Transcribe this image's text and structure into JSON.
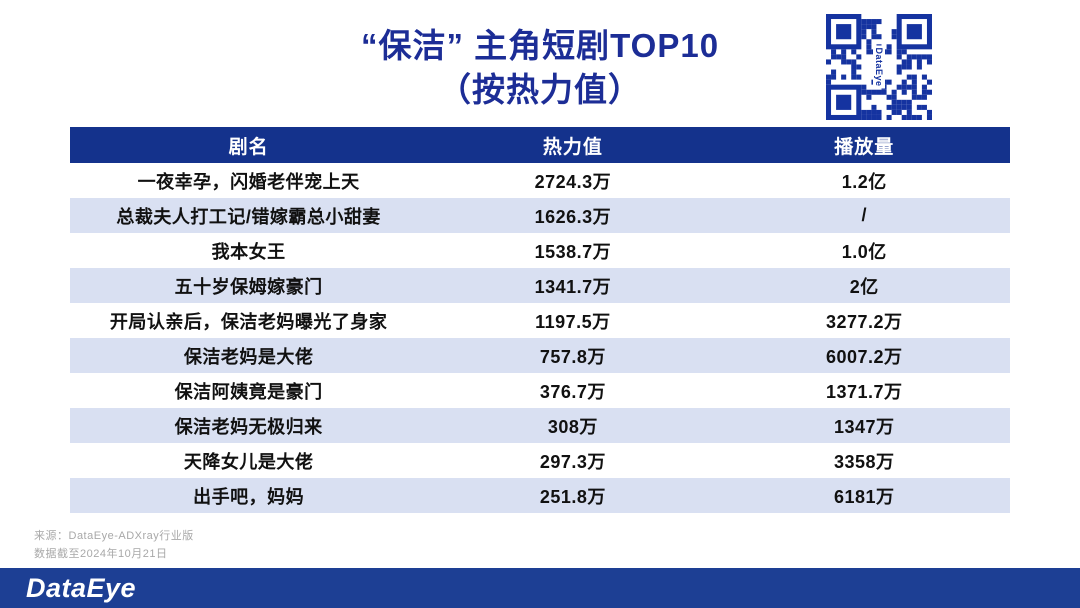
{
  "title": {
    "line1": "“保洁” 主角短剧TOP10",
    "line2": "（按热力值）"
  },
  "qr": {
    "label": "DataEye"
  },
  "icons": {
    "qr_code": "qr-code-icon"
  },
  "chart_data": {
    "type": "table",
    "title": "“保洁”主角短剧TOP10（按热力值）",
    "columns": [
      "剧名",
      "热力值",
      "播放量"
    ],
    "rows": [
      [
        "一夜幸孕，闪婚老伴宠上天",
        "2724.3万",
        "1.2亿"
      ],
      [
        "总裁夫人打工记/错嫁霸总小甜妻",
        "1626.3万",
        "/"
      ],
      [
        "我本女王",
        "1538.7万",
        "1.0亿"
      ],
      [
        "五十岁保姆嫁豪门",
        "1341.7万",
        "2亿"
      ],
      [
        "开局认亲后，保洁老妈曝光了身家",
        "1197.5万",
        "3277.2万"
      ],
      [
        "保洁老妈是大佬",
        "757.8万",
        "6007.2万"
      ],
      [
        "保洁阿姨竟是豪门",
        "376.7万",
        "1371.7万"
      ],
      [
        "保洁老妈无极归来",
        "308万",
        "1347万"
      ],
      [
        "天降女儿是大佬",
        "297.3万",
        "3358万"
      ],
      [
        "出手吧，妈妈",
        "251.8万",
        "6181万"
      ]
    ]
  },
  "footer": {
    "source": "来源：DataEye-ADXray行业版",
    "date": "数据截至2024年10月21日"
  },
  "logo": {
    "text": "DataEye"
  },
  "colors": {
    "title": "#1c2d96",
    "header_bg": "#14328c",
    "row_alt": "#d9e0f2",
    "bar_bg": "#1d3f94",
    "qr": "#1533a0"
  }
}
